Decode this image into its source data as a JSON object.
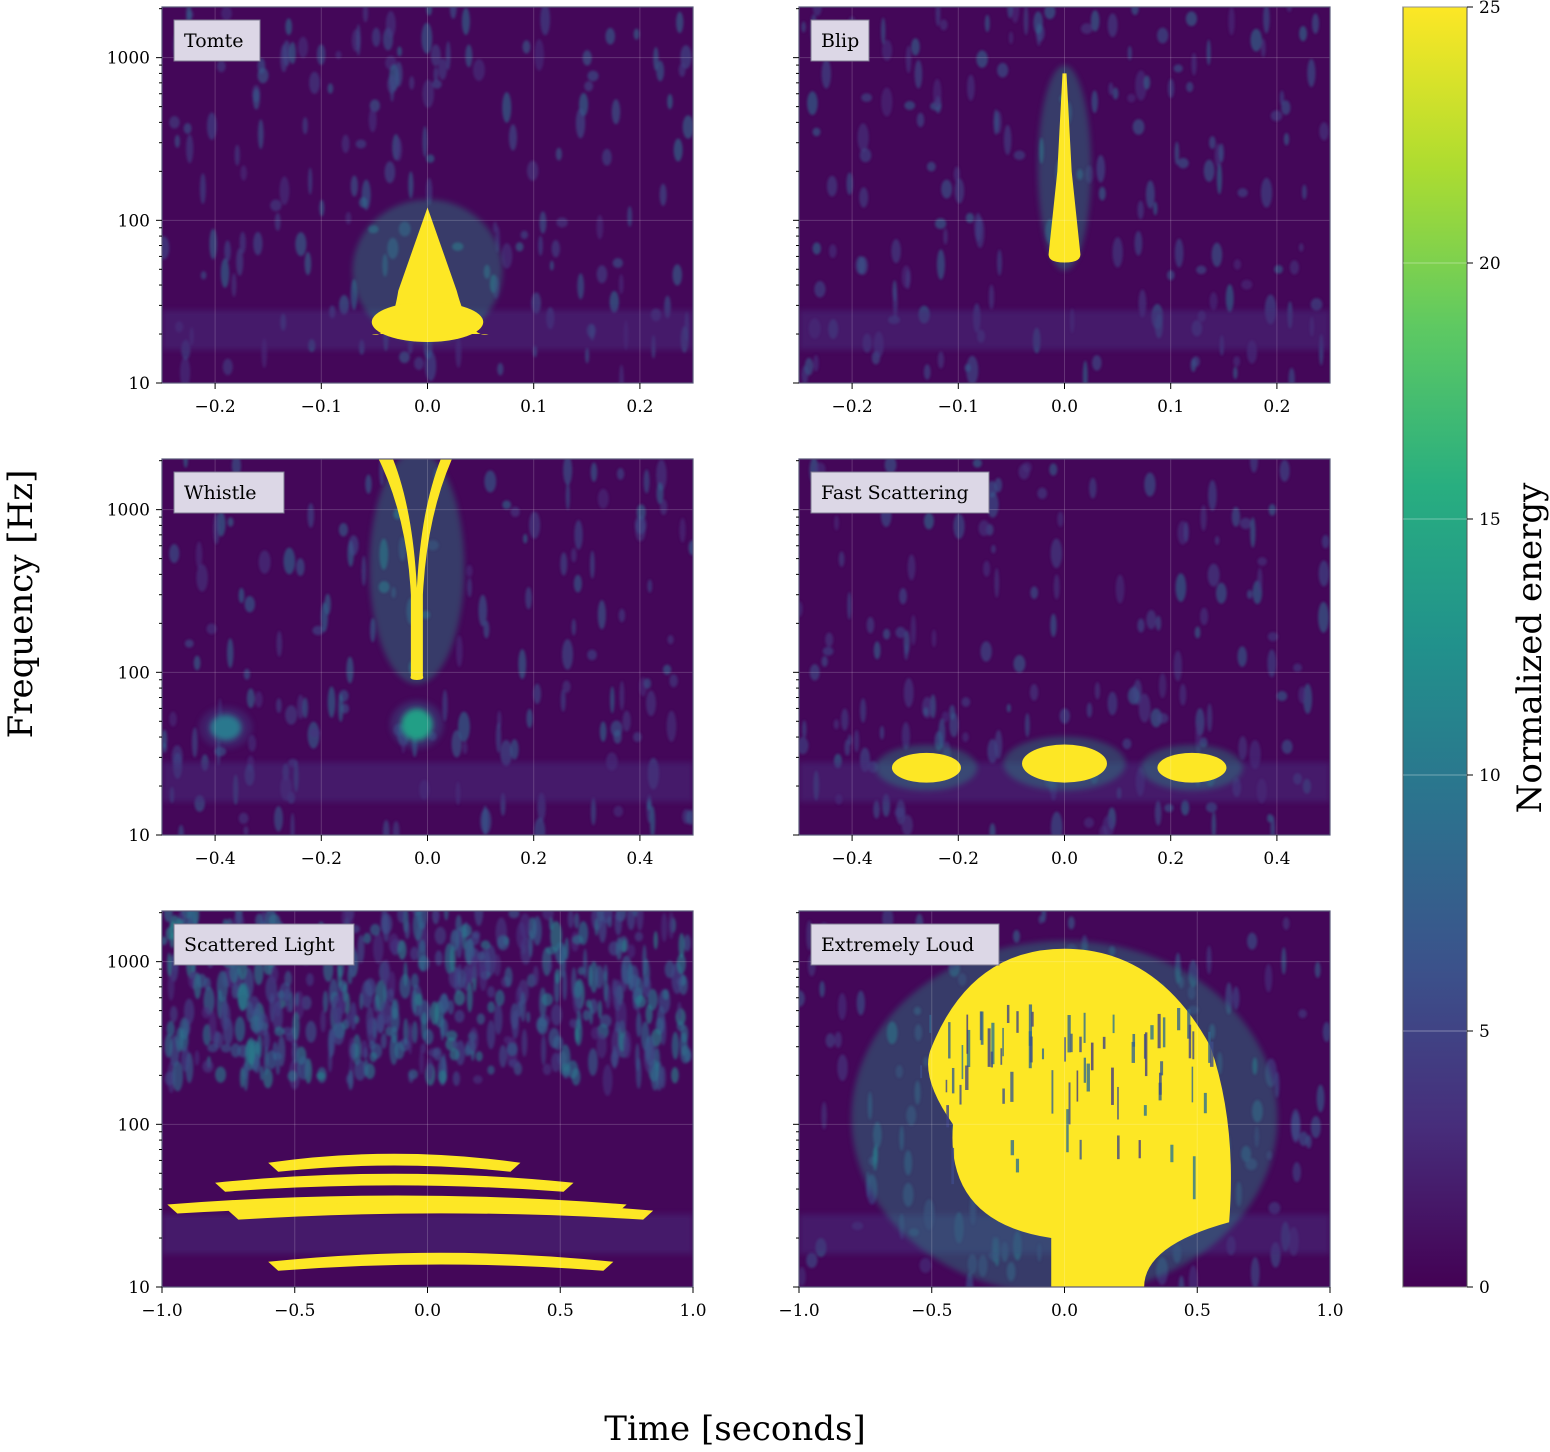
{
  "figure": {
    "xlabel": "Time [seconds]",
    "ylabel": "Frequency [Hz]",
    "colorbar_label": "Normalized energy"
  },
  "colorbar": {
    "min": 0,
    "max": 25,
    "ticks": [
      0,
      5,
      10,
      15,
      20,
      25
    ],
    "colormap": [
      "#440154",
      "#472d7b",
      "#3b528b",
      "#2c728e",
      "#21918c",
      "#28ae80",
      "#5ec962",
      "#addc30",
      "#fde725"
    ]
  },
  "chart_data": [
    {
      "type": "heatmap",
      "title": "Tomte",
      "xlim": [
        -0.25,
        0.25
      ],
      "xticks": [
        -0.2,
        -0.1,
        0.0,
        0.1,
        0.2
      ],
      "xtick_labels": [
        "−0.2",
        "−0.1",
        "0.0",
        "0.1",
        "0.2"
      ],
      "ylim": [
        10,
        2048
      ],
      "yscale": "log",
      "yticks": [
        10,
        100,
        1000
      ],
      "blobs": [
        {
          "t": 0.0,
          "f_low": 20,
          "f_high": 120,
          "width": 0.1,
          "energy": 25,
          "shape": "triangle"
        }
      ]
    },
    {
      "type": "heatmap",
      "title": "Blip",
      "xlim": [
        -0.25,
        0.25
      ],
      "xticks": [
        -0.2,
        -0.1,
        0.0,
        0.1,
        0.2
      ],
      "xtick_labels": [
        "−0.2",
        "−0.1",
        "0.0",
        "0.1",
        "0.2"
      ],
      "ylim": [
        10,
        2048
      ],
      "yscale": "log",
      "yticks": [
        10,
        100,
        1000
      ],
      "blobs": [
        {
          "t": 0.0,
          "f_low": 55,
          "f_high": 800,
          "width": 0.03,
          "energy": 25,
          "shape": "spike"
        }
      ]
    },
    {
      "type": "heatmap",
      "title": "Whistle",
      "xlim": [
        -0.5,
        0.5
      ],
      "xticks": [
        -0.4,
        -0.2,
        0.0,
        0.2,
        0.4
      ],
      "xtick_labels": [
        "−0.4",
        "−0.2",
        "0.0",
        "0.2",
        "0.4"
      ],
      "ylim": [
        10,
        2048
      ],
      "yscale": "log",
      "yticks": [
        10,
        100,
        1000
      ],
      "blobs": [
        {
          "t": -0.02,
          "f_low": 95,
          "f_high": 2048,
          "width": 0.12,
          "energy": 25,
          "shape": "whistle"
        },
        {
          "t": -0.02,
          "f_low": 38,
          "f_high": 60,
          "width": 0.06,
          "energy": 14,
          "shape": "ellipse"
        },
        {
          "t": -0.38,
          "f_low": 38,
          "f_high": 55,
          "width": 0.06,
          "energy": 10,
          "shape": "ellipse"
        }
      ]
    },
    {
      "type": "heatmap",
      "title": "Fast Scattering",
      "xlim": [
        -0.5,
        0.5
      ],
      "xticks": [
        -0.4,
        -0.2,
        0.0,
        0.2,
        0.4
      ],
      "xtick_labels": [
        "−0.4",
        "−0.2",
        "0.0",
        "0.2",
        "0.4"
      ],
      "ylim": [
        10,
        2048
      ],
      "yscale": "log",
      "yticks": [
        10,
        100,
        1000
      ],
      "blobs": [
        {
          "t": -0.26,
          "f_low": 21,
          "f_high": 32,
          "width": 0.13,
          "energy": 25,
          "shape": "ellipse"
        },
        {
          "t": 0.0,
          "f_low": 21,
          "f_high": 36,
          "width": 0.16,
          "energy": 25,
          "shape": "ellipse"
        },
        {
          "t": 0.24,
          "f_low": 21,
          "f_high": 32,
          "width": 0.13,
          "energy": 25,
          "shape": "ellipse"
        }
      ]
    },
    {
      "type": "heatmap",
      "title": "Scattered Light",
      "xlim": [
        -1.0,
        1.0
      ],
      "xticks": [
        -1.0,
        -0.5,
        0.0,
        0.5,
        1.0
      ],
      "xtick_labels": [
        "−1.0",
        "−0.5",
        "0.0",
        "0.5",
        "1.0"
      ],
      "ylim": [
        10,
        2048
      ],
      "yscale": "log",
      "yticks": [
        10,
        100,
        1000
      ],
      "arches": [
        {
          "f_peak": 65,
          "t_start": -0.6,
          "t_end": 0.35,
          "energy": 25
        },
        {
          "f_peak": 49,
          "t_start": -0.8,
          "t_end": 0.55,
          "energy": 25
        },
        {
          "f_peak": 36,
          "t_start": -0.98,
          "t_end": 0.75,
          "energy": 25
        },
        {
          "f_peak": 33,
          "t_start": -0.75,
          "t_end": 0.85,
          "energy": 25
        },
        {
          "f_peak": 16,
          "t_start": -0.6,
          "t_end": 0.7,
          "energy": 25
        }
      ]
    },
    {
      "type": "heatmap",
      "title": "Extremely Loud",
      "xlim": [
        -1.0,
        1.0
      ],
      "xticks": [
        -1.0,
        -0.5,
        0.0,
        0.5,
        1.0
      ],
      "xtick_labels": [
        "−1.0",
        "−0.5",
        "0.0",
        "0.5",
        "1.0"
      ],
      "ylim": [
        10,
        2048
      ],
      "yscale": "log",
      "yticks": [
        10,
        100,
        1000
      ],
      "blobs": [
        {
          "t": 0.0,
          "f_low": 10,
          "f_high": 1200,
          "width": 1.2,
          "energy": 25,
          "shape": "dome"
        }
      ]
    }
  ]
}
